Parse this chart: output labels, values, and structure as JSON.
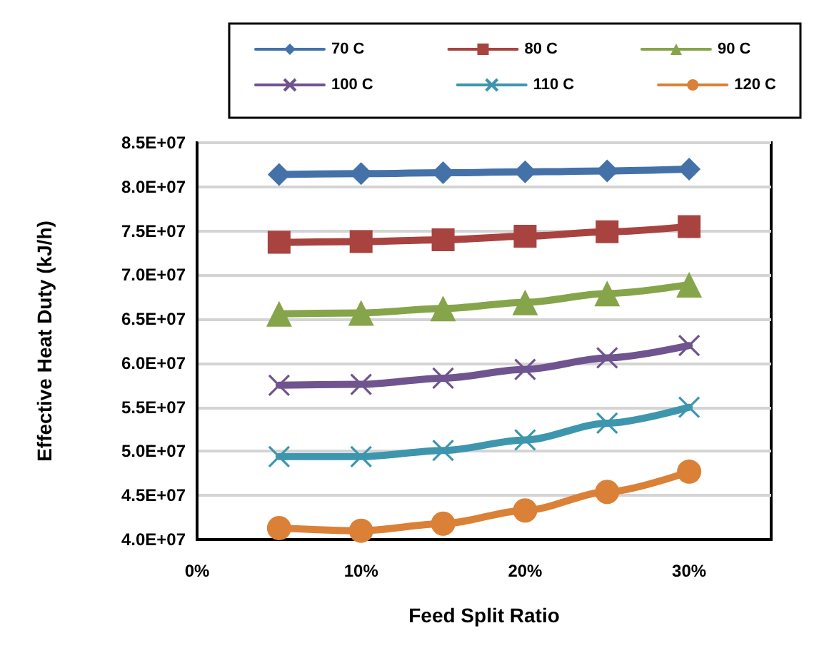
{
  "chart_data": {
    "type": "line",
    "xlabel": "Feed Split Ratio",
    "ylabel": "Effective Heat Duty (kJ/h)",
    "x": [
      5,
      10,
      15,
      20,
      25,
      30
    ],
    "xlim": [
      0,
      35
    ],
    "xticks": [
      {
        "value": 0,
        "label": "0%"
      },
      {
        "value": 10,
        "label": "10%"
      },
      {
        "value": 20,
        "label": "20%"
      },
      {
        "value": 30,
        "label": "30%"
      }
    ],
    "ylim": [
      40000000,
      85000000
    ],
    "yticks": [
      {
        "value": 40000000,
        "label": "4.0E+07"
      },
      {
        "value": 45000000,
        "label": "4.5E+07"
      },
      {
        "value": 50000000,
        "label": "5.0E+07"
      },
      {
        "value": 55000000,
        "label": "5.5E+07"
      },
      {
        "value": 60000000,
        "label": "6.0E+07"
      },
      {
        "value": 65000000,
        "label": "6.5E+07"
      },
      {
        "value": 70000000,
        "label": "7.0E+07"
      },
      {
        "value": 75000000,
        "label": "7.5E+07"
      },
      {
        "value": 80000000,
        "label": "8.0E+07"
      },
      {
        "value": 85000000,
        "label": "8.5E+07"
      }
    ],
    "grid": "y",
    "legend": "top",
    "line_style": "solid",
    "series": [
      {
        "name": "70 C",
        "color": "#4472a8",
        "marker": "diamond",
        "values": [
          81400000,
          81500000,
          81600000,
          81700000,
          81800000,
          82000000
        ]
      },
      {
        "name": "80 C",
        "color": "#a84340",
        "marker": "square",
        "values": [
          73700000,
          73800000,
          74000000,
          74400000,
          74900000,
          75500000
        ]
      },
      {
        "name": "90 C",
        "color": "#86a44a",
        "marker": "triangle",
        "values": [
          65600000,
          65700000,
          66200000,
          66900000,
          67900000,
          68900000
        ]
      },
      {
        "name": "100 C",
        "color": "#6f548f",
        "marker": "cross",
        "values": [
          57500000,
          57600000,
          58300000,
          59300000,
          60600000,
          62000000
        ]
      },
      {
        "name": "110 C",
        "color": "#3d96ae",
        "marker": "cross",
        "values": [
          49400000,
          49400000,
          50100000,
          51300000,
          53200000,
          55000000
        ]
      },
      {
        "name": "120 C",
        "color": "#da8137",
        "marker": "circle",
        "values": [
          41300000,
          41000000,
          41800000,
          43300000,
          45400000,
          47700000
        ]
      }
    ]
  }
}
